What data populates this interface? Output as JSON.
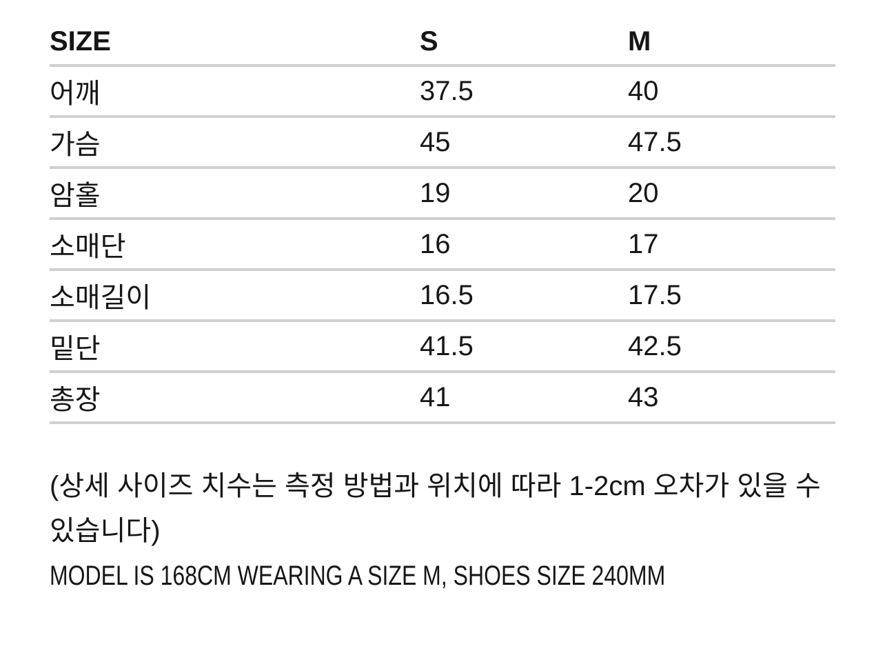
{
  "table": {
    "headers": {
      "label": "SIZE",
      "s": "S",
      "m": "M"
    },
    "rows": [
      {
        "label": "어깨",
        "s": "37.5",
        "m": "40"
      },
      {
        "label": "가슴",
        "s": "45",
        "m": "47.5"
      },
      {
        "label": "암홀",
        "s": "19",
        "m": "20"
      },
      {
        "label": "소매단",
        "s": "16",
        "m": "17"
      },
      {
        "label": "소매길이",
        "s": "16.5",
        "m": "17.5"
      },
      {
        "label": "밑단",
        "s": "41.5",
        "m": "42.5"
      },
      {
        "label": "총장",
        "s": "41",
        "m": "43"
      }
    ]
  },
  "notes": {
    "tolerance_note": "(상세 사이즈 치수는 측정 방법과 위치에 따라 1-2cm 오차가 있을 수 있습니다)",
    "model_info": "MODEL IS 168CM WEARING A SIZE M, SHOES SIZE 240MM"
  },
  "colors": {
    "text": "#161616",
    "divider": "#d0d0d0",
    "background": "#ffffff"
  }
}
